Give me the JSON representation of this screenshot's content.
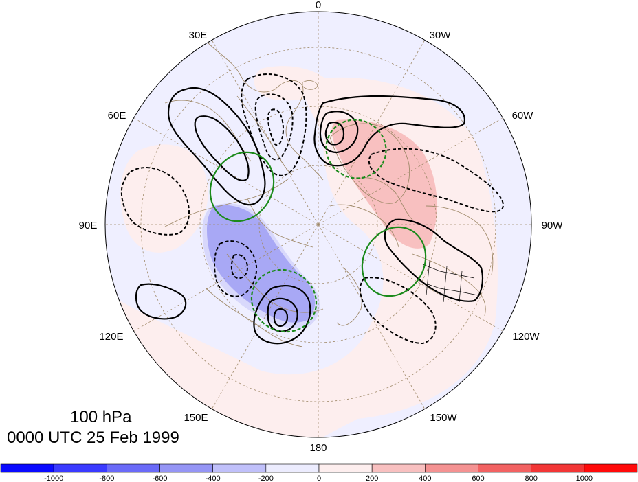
{
  "title": {
    "level": "100 hPa",
    "time": "0000 UTC 25 Feb 1999"
  },
  "longitude_labels": [
    {
      "label": "0",
      "lon": 0
    },
    {
      "label": "30W",
      "lon": -30
    },
    {
      "label": "60W",
      "lon": -60
    },
    {
      "label": "90W",
      "lon": -90
    },
    {
      "label": "120W",
      "lon": -120
    },
    {
      "label": "150W",
      "lon": -150
    },
    {
      "label": "180",
      "lon": 180
    },
    {
      "label": "150E",
      "lon": 150
    },
    {
      "label": "120E",
      "lon": 120
    },
    {
      "label": "90E",
      "lon": 90
    },
    {
      "label": "60E",
      "lon": 60
    },
    {
      "label": "30E",
      "lon": 30
    }
  ],
  "colorbar": {
    "tick_labels": [
      "-1000",
      "-800",
      "-600",
      "-400",
      "-200",
      "0",
      "200",
      "400",
      "600",
      "800",
      "1000"
    ],
    "bins": [
      {
        "color": "#0a0aff"
      },
      {
        "color": "#3a3aff"
      },
      {
        "color": "#6a6af8"
      },
      {
        "color": "#9595f5"
      },
      {
        "color": "#c0c0fa"
      },
      {
        "color": "#ececfe"
      },
      {
        "color": "#fdeeee"
      },
      {
        "color": "#f8c0c0"
      },
      {
        "color": "#f49292"
      },
      {
        "color": "#f26262"
      },
      {
        "color": "#f23636"
      },
      {
        "color": "#ff0a0a"
      }
    ]
  },
  "colors": {
    "positive_contour": "#000000",
    "negative_contour": "#000000",
    "green_contour": "#1b8a1b",
    "coastline": "#a08a6a",
    "graticule": "#a08a6a",
    "background_disk": "#f0f0ff"
  }
}
